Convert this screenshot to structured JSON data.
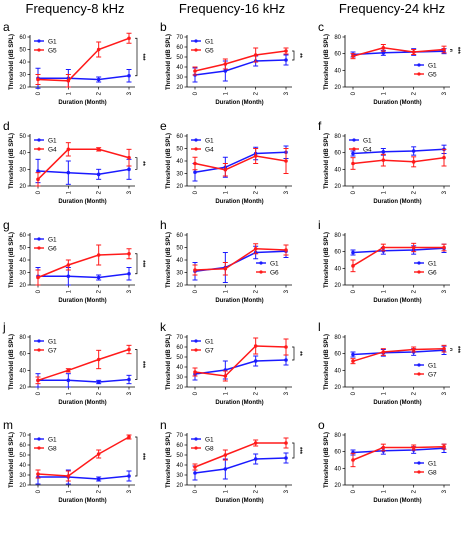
{
  "figure": {
    "column_titles": [
      "Frequency-8 kHz",
      "Frequency-16 kHz",
      "Frequency-24 kHz"
    ]
  },
  "colors": {
    "G1": "#1a1aff",
    "treated": "#ff1a1a"
  },
  "chart_data": [
    {
      "panel": "a",
      "type": "line",
      "x": [
        0,
        1,
        2,
        3
      ],
      "xlabel": "Duration (Month)",
      "ylabel": "Threshold (dB SPL)",
      "ylim": [
        20,
        60
      ],
      "yticks": [
        20,
        30,
        40,
        50,
        60
      ],
      "legend": "top-left",
      "sig": "***",
      "series": [
        {
          "name": "G1",
          "values": [
            27,
            27,
            26,
            29
          ],
          "err": [
            8,
            7,
            2,
            5
          ]
        },
        {
          "name": "G5",
          "values": [
            26,
            25,
            50,
            59
          ],
          "err": [
            4,
            5,
            6,
            4
          ]
        }
      ]
    },
    {
      "panel": "b",
      "type": "line",
      "x": [
        0,
        1,
        2,
        3
      ],
      "xlabel": "Duration (Month)",
      "ylabel": "Threshold (dB SPL)",
      "ylim": [
        20,
        70
      ],
      "yticks": [
        20,
        30,
        40,
        50,
        60,
        70
      ],
      "legend": "top-left",
      "sig": "**",
      "series": [
        {
          "name": "G1",
          "values": [
            32,
            36,
            46,
            47
          ],
          "err": [
            7,
            10,
            5,
            5
          ]
        },
        {
          "name": "G5",
          "values": [
            36,
            43,
            52,
            56
          ],
          "err": [
            4,
            5,
            7,
            3
          ]
        }
      ]
    },
    {
      "panel": "c",
      "type": "line",
      "x": [
        0,
        1,
        2,
        3
      ],
      "xlabel": "Duration (Month)",
      "ylabel": "Threshold (dB SPL)",
      "ylim": [
        20,
        80
      ],
      "yticks": [
        20,
        40,
        60,
        80
      ],
      "legend": "bottom-right",
      "sig": "***",
      "series": [
        {
          "name": "G1",
          "values": [
            59,
            61,
            62,
            63
          ],
          "err": [
            3,
            3,
            4,
            3
          ]
        },
        {
          "name": "G5",
          "values": [
            57,
            67,
            62,
            65
          ],
          "err": [
            3,
            4,
            3,
            4
          ]
        }
      ]
    },
    {
      "panel": "d",
      "type": "line",
      "x": [
        0,
        1,
        2,
        3
      ],
      "xlabel": "Duration (Month)",
      "ylabel": "Threshold (dB SPL)",
      "ylim": [
        20,
        50
      ],
      "yticks": [
        20,
        30,
        40,
        50
      ],
      "legend": "top-left",
      "sig": "**",
      "series": [
        {
          "name": "G1",
          "values": [
            29,
            28,
            27,
            30
          ],
          "err": [
            7,
            7,
            3,
            6
          ]
        },
        {
          "name": "G4",
          "values": [
            24,
            42,
            42,
            37
          ],
          "err": [
            4,
            4,
            1,
            5
          ]
        }
      ]
    },
    {
      "panel": "e",
      "type": "line",
      "x": [
        0,
        1,
        2,
        3
      ],
      "xlabel": "Duration (Month)",
      "ylabel": "Threshold (dB SPL)",
      "ylim": [
        20,
        60
      ],
      "yticks": [
        20,
        30,
        40,
        50,
        60
      ],
      "legend": "top-left",
      "sig": "",
      "series": [
        {
          "name": "G1",
          "values": [
            31,
            35,
            46,
            47
          ],
          "err": [
            7,
            8,
            5,
            5
          ]
        },
        {
          "name": "G4",
          "values": [
            38,
            33,
            44,
            40
          ],
          "err": [
            5,
            5,
            6,
            10
          ]
        }
      ]
    },
    {
      "panel": "f",
      "type": "line",
      "x": [
        0,
        1,
        2,
        3
      ],
      "xlabel": "Duration (Month)",
      "ylabel": "Threshold (dB SPL)",
      "ylim": [
        20,
        80
      ],
      "yticks": [
        20,
        40,
        60,
        80
      ],
      "legend": "top-left",
      "sig": "",
      "series": [
        {
          "name": "G1",
          "values": [
            59,
            61,
            62,
            64
          ],
          "err": [
            3,
            4,
            5,
            5
          ]
        },
        {
          "name": "G4",
          "values": [
            47,
            51,
            49,
            54
          ],
          "err": [
            7,
            7,
            6,
            10
          ]
        }
      ]
    },
    {
      "panel": "g",
      "type": "line",
      "x": [
        0,
        1,
        2,
        3
      ],
      "xlabel": "Duration (Month)",
      "ylabel": "Threshold (dB SPL)",
      "ylim": [
        20,
        60
      ],
      "yticks": [
        20,
        30,
        40,
        50,
        60
      ],
      "legend": "top-left",
      "sig": "***",
      "series": [
        {
          "name": "G1",
          "values": [
            27,
            27,
            26,
            29
          ],
          "err": [
            7,
            7,
            2,
            5
          ]
        },
        {
          "name": "G6",
          "values": [
            26,
            36,
            44,
            45
          ],
          "err": [
            6,
            4,
            8,
            4
          ]
        }
      ]
    },
    {
      "panel": "h",
      "type": "line",
      "x": [
        0,
        1,
        2,
        3
      ],
      "xlabel": "Duration (Month)",
      "ylabel": "Threshold (dB SPL)",
      "ylim": [
        20,
        60
      ],
      "yticks": [
        20,
        30,
        40,
        50,
        60
      ],
      "legend": "bottom-right",
      "sig": "",
      "series": [
        {
          "name": "G1",
          "values": [
            31,
            34,
            46,
            47
          ],
          "err": [
            7,
            12,
            5,
            5
          ]
        },
        {
          "name": "G6",
          "values": [
            32,
            33,
            49,
            48
          ],
          "err": [
            4,
            5,
            4,
            4
          ]
        }
      ]
    },
    {
      "panel": "i",
      "type": "line",
      "x": [
        0,
        1,
        2,
        3
      ],
      "xlabel": "Duration (Month)",
      "ylabel": "Threshold (dB SPL)",
      "ylim": [
        20,
        80
      ],
      "yticks": [
        20,
        40,
        60,
        80
      ],
      "legend": "bottom-right",
      "sig": "",
      "series": [
        {
          "name": "G1",
          "values": [
            59,
            61,
            62,
            64
          ],
          "err": [
            3,
            4,
            5,
            5
          ]
        },
        {
          "name": "G6",
          "values": [
            43,
            65,
            65,
            65
          ],
          "err": [
            7,
            4,
            5,
            4
          ]
        }
      ]
    },
    {
      "panel": "j",
      "type": "line",
      "x": [
        0,
        1,
        2,
        3
      ],
      "xlabel": "Duration (Month)",
      "ylabel": "Threshold (dB SPL)",
      "ylim": [
        20,
        80
      ],
      "yticks": [
        20,
        40,
        60,
        80
      ],
      "legend": "top-left",
      "sig": "***",
      "series": [
        {
          "name": "G1",
          "values": [
            28,
            28,
            26,
            29
          ],
          "err": [
            8,
            8,
            2,
            5
          ]
        },
        {
          "name": "G7",
          "values": [
            28,
            40,
            53,
            65
          ],
          "err": [
            4,
            2,
            11,
            5
          ]
        }
      ]
    },
    {
      "panel": "k",
      "type": "line",
      "x": [
        0,
        1,
        2,
        3
      ],
      "xlabel": "Duration (Month)",
      "ylabel": "Threshold (dB SPL)",
      "ylim": [
        20,
        70
      ],
      "yticks": [
        20,
        30,
        40,
        50,
        60,
        70
      ],
      "legend": "top-left",
      "sig": "**",
      "series": [
        {
          "name": "G1",
          "values": [
            33,
            37,
            46,
            47
          ],
          "err": [
            6,
            9,
            5,
            5
          ]
        },
        {
          "name": "G7",
          "values": [
            35,
            31,
            61,
            60
          ],
          "err": [
            4,
            5,
            8,
            8
          ]
        }
      ]
    },
    {
      "panel": "l",
      "type": "line",
      "x": [
        0,
        1,
        2,
        3
      ],
      "xlabel": "Duration (Month)",
      "ylabel": "Threshold (dB SPL)",
      "ylim": [
        20,
        80
      ],
      "yticks": [
        20,
        40,
        60,
        80
      ],
      "legend": "bottom-right",
      "sig": "***",
      "series": [
        {
          "name": "G1",
          "values": [
            59,
            61,
            62,
            64
          ],
          "err": [
            3,
            4,
            4,
            5
          ]
        },
        {
          "name": "G7",
          "values": [
            51,
            62,
            65,
            66
          ],
          "err": [
            3,
            4,
            3,
            4
          ]
        }
      ]
    },
    {
      "panel": "m",
      "type": "line",
      "x": [
        0,
        1,
        2,
        3
      ],
      "xlabel": "Duration (Month)",
      "ylabel": "Threshold (dB SPL)",
      "ylim": [
        20,
        70
      ],
      "yticks": [
        20,
        30,
        40,
        50,
        60,
        70
      ],
      "legend": "top-left",
      "sig": "***",
      "series": [
        {
          "name": "G1",
          "values": [
            28,
            28,
            26,
            29
          ],
          "err": [
            7,
            7,
            2,
            5
          ]
        },
        {
          "name": "G8",
          "values": [
            31,
            29,
            51,
            68
          ],
          "err": [
            4,
            5,
            4,
            2
          ]
        }
      ]
    },
    {
      "panel": "n",
      "type": "line",
      "x": [
        0,
        1,
        2,
        3
      ],
      "xlabel": "Duration (Month)",
      "ylabel": "Threshold (dB SPL)",
      "ylim": [
        20,
        70
      ],
      "yticks": [
        20,
        30,
        40,
        50,
        60,
        70
      ],
      "legend": "top-left",
      "sig": "***",
      "series": [
        {
          "name": "G1",
          "values": [
            32,
            36,
            46,
            47
          ],
          "err": [
            7,
            10,
            5,
            5
          ]
        },
        {
          "name": "G8",
          "values": [
            38,
            50,
            62,
            62
          ],
          "err": [
            3,
            5,
            3,
            5
          ]
        }
      ]
    },
    {
      "panel": "o",
      "type": "line",
      "x": [
        0,
        1,
        2,
        3
      ],
      "xlabel": "Duration (Month)",
      "ylabel": "Threshold (dB SPL)",
      "ylim": [
        20,
        80
      ],
      "yticks": [
        20,
        40,
        60,
        80
      ],
      "legend": "bottom-right",
      "sig": "",
      "series": [
        {
          "name": "G1",
          "values": [
            59,
            61,
            62,
            64
          ],
          "err": [
            3,
            4,
            4,
            5
          ]
        },
        {
          "name": "G8",
          "values": [
            50,
            65,
            65,
            66
          ],
          "err": [
            8,
            4,
            3,
            3
          ]
        }
      ]
    }
  ]
}
